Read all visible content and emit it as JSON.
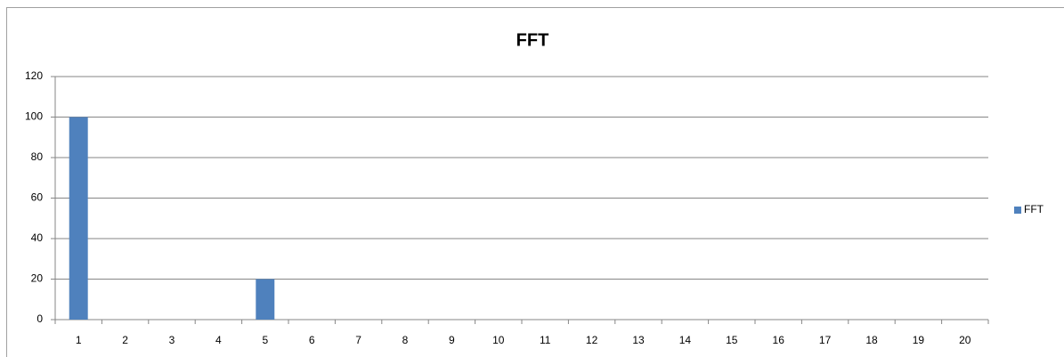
{
  "chart_data": {
    "type": "bar",
    "title": "FFT",
    "categories": [
      "1",
      "2",
      "3",
      "4",
      "5",
      "6",
      "7",
      "8",
      "9",
      "10",
      "11",
      "12",
      "13",
      "14",
      "15",
      "16",
      "17",
      "18",
      "19",
      "20"
    ],
    "series": [
      {
        "name": "FFT",
        "color": "#4f81bd",
        "values": [
          100,
          0,
          0,
          0,
          20,
          0,
          0,
          0,
          0,
          0,
          0,
          0,
          0,
          0,
          0,
          0,
          0,
          0,
          0,
          0
        ]
      }
    ],
    "ylim": [
      0,
      120
    ],
    "yticks": [
      0,
      20,
      40,
      60,
      80,
      100,
      120
    ],
    "grid": true,
    "legend": "right"
  }
}
